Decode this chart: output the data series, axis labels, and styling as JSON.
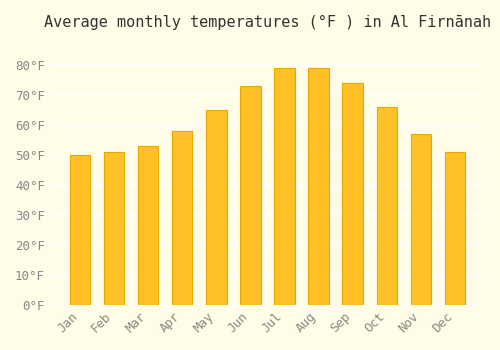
{
  "title": "Average monthly temperatures (°F ) in Al Firnānah",
  "months": [
    "Jan",
    "Feb",
    "Mar",
    "Apr",
    "May",
    "Jun",
    "Jul",
    "Aug",
    "Sep",
    "Oct",
    "Nov",
    "Dec"
  ],
  "values": [
    50,
    51,
    53,
    58,
    65,
    73,
    79,
    79,
    74,
    66,
    57,
    51
  ],
  "bar_color": "#FFC125",
  "bar_edge_color": "#E8A800",
  "background_color": "#FFFDE7",
  "grid_color": "#FFFFFF",
  "text_color": "#888888",
  "ylim": [
    0,
    88
  ],
  "yticks": [
    0,
    10,
    20,
    30,
    40,
    50,
    60,
    70,
    80
  ],
  "ylabel_suffix": "°F",
  "title_fontsize": 11,
  "tick_fontsize": 9
}
